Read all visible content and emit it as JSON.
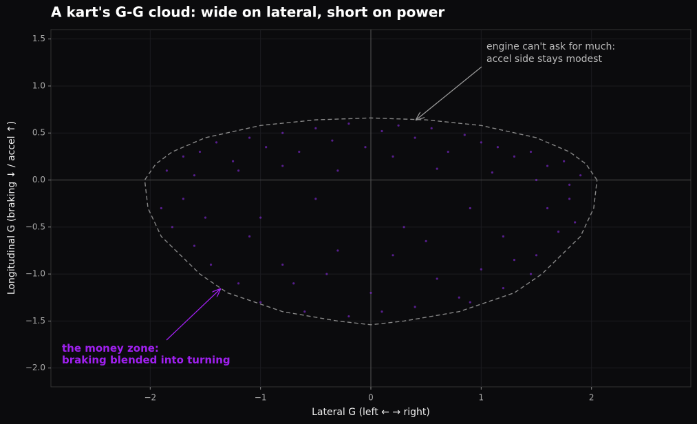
{
  "chart_data": {
    "type": "scatter",
    "title": "A kart's G-G cloud: wide on lateral, short on power",
    "x_label": "Lateral G  (left ← → right)",
    "y_label": "Longitudinal G  (braking ↓ / accel ↑)",
    "xlim": [
      -2.9,
      2.9
    ],
    "ylim": [
      -2.2,
      1.6
    ],
    "xticks": [
      {
        "value": -2,
        "label": "−2"
      },
      {
        "value": -1,
        "label": "−1"
      },
      {
        "value": 0,
        "label": "0"
      },
      {
        "value": 1,
        "label": "1"
      },
      {
        "value": 2,
        "label": "2"
      }
    ],
    "yticks": [
      {
        "value": 1.5,
        "label": "1.5"
      },
      {
        "value": 1,
        "label": "1.0"
      },
      {
        "value": 0.5,
        "label": "0.5"
      },
      {
        "value": 0,
        "label": "0.0"
      },
      {
        "value": -0.5,
        "label": "−0.5"
      },
      {
        "value": -1,
        "label": "−1.0"
      },
      {
        "value": -1.5,
        "label": "−1.5"
      },
      {
        "value": -2,
        "label": "−2.0"
      }
    ],
    "grid": true,
    "series": [
      {
        "name": "samples",
        "color": "#8a2be2",
        "x": [
          -1.85,
          -1.7,
          -1.55,
          -1.4,
          -1.25,
          -1.1,
          -0.95,
          -0.8,
          -0.65,
          -0.5,
          -0.35,
          -0.2,
          -0.05,
          0.1,
          0.25,
          0.4,
          0.55,
          0.7,
          0.85,
          1.0,
          1.15,
          1.3,
          1.45,
          1.6,
          1.75,
          1.9,
          -1.6,
          -1.2,
          -0.8,
          -0.3,
          0.2,
          0.6,
          1.1,
          1.5,
          1.8,
          -1.9,
          -1.8,
          -1.7,
          -1.6,
          -1.5,
          -1.45,
          1.5,
          1.6,
          1.7,
          1.8,
          1.85,
          1.45,
          -1.2,
          -1.0,
          -0.8,
          -0.6,
          -0.4,
          -0.2,
          0.0,
          0.2,
          0.4,
          0.6,
          0.8,
          1.0,
          1.2,
          -1.1,
          -0.7,
          -0.3,
          0.1,
          0.5,
          0.9,
          1.3,
          -1.0,
          -0.5,
          0.3,
          0.9,
          1.2
        ],
        "values": [
          0.1,
          0.25,
          0.3,
          0.4,
          0.2,
          0.45,
          0.35,
          0.5,
          0.3,
          0.55,
          0.42,
          0.6,
          0.35,
          0.52,
          0.58,
          0.45,
          0.55,
          0.3,
          0.48,
          0.4,
          0.35,
          0.25,
          0.3,
          0.15,
          0.2,
          0.05,
          0.05,
          0.1,
          0.15,
          0.1,
          0.25,
          0.12,
          0.08,
          0.0,
          -0.05,
          -0.3,
          -0.5,
          -0.2,
          -0.7,
          -0.4,
          -0.9,
          -0.8,
          -0.3,
          -0.55,
          -0.2,
          -0.45,
          -1.0,
          -1.1,
          -1.3,
          -0.9,
          -1.4,
          -1.0,
          -1.45,
          -1.2,
          -0.8,
          -1.35,
          -1.05,
          -1.25,
          -0.95,
          -1.15,
          -0.6,
          -1.1,
          -0.75,
          -1.4,
          -0.65,
          -1.3,
          -0.85,
          -0.4,
          -0.2,
          -0.5,
          -0.3,
          -0.6
        ]
      },
      {
        "name": "envelope",
        "color": "#888888",
        "x": [
          2.05,
          1.95,
          1.8,
          1.5,
          1.0,
          0.5,
          0,
          -0.5,
          -1.0,
          -1.5,
          -1.8,
          -1.95,
          -2.05,
          -2.02,
          -1.9,
          -1.55,
          -1.3,
          -0.8,
          -0.3,
          0,
          0.3,
          0.8,
          1.3,
          1.55,
          1.9,
          2.02,
          2.05
        ],
        "values": [
          0,
          0.17,
          0.3,
          0.45,
          0.58,
          0.64,
          0.66,
          0.64,
          0.58,
          0.45,
          0.3,
          0.17,
          0,
          -0.3,
          -0.6,
          -1.0,
          -1.2,
          -1.4,
          -1.5,
          -1.54,
          -1.5,
          -1.4,
          -1.2,
          -1.0,
          -0.6,
          -0.3,
          0
        ]
      }
    ],
    "annotations": [
      {
        "lines": [
          "engine can't ask for much:",
          "accel side stays modest"
        ]
      },
      {
        "lines": [
          "the money zone:",
          "braking blended into turning"
        ]
      }
    ]
  }
}
